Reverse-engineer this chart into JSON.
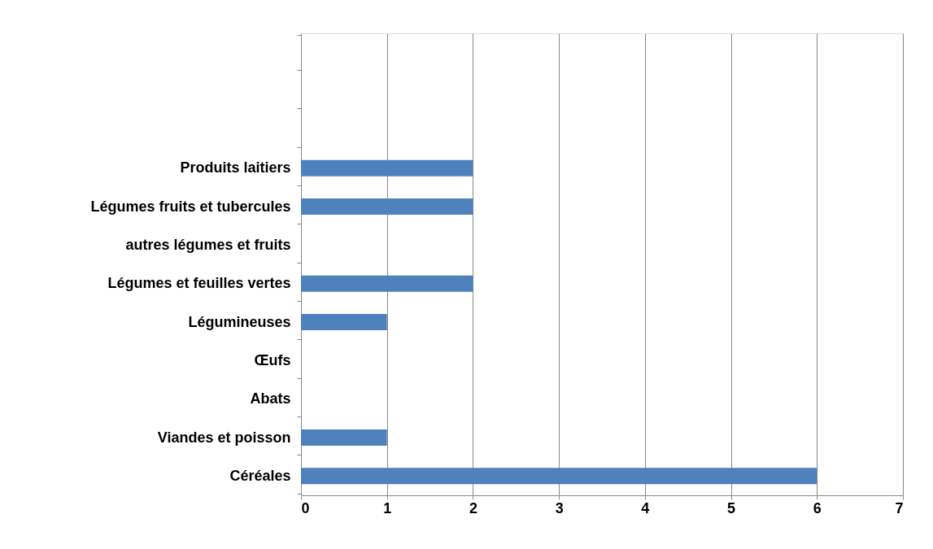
{
  "chart_data": {
    "type": "bar",
    "orientation": "horizontal",
    "categories": [
      null,
      null,
      null,
      "Produits laitiers",
      "Légumes fruits et tubercules",
      "autres légumes et fruits",
      "Légumes et feuilles vertes",
      "Légumineuses",
      "Œufs",
      "Abats",
      "Viandes et poisson",
      "Céréales"
    ],
    "values": [
      null,
      null,
      null,
      2,
      2,
      0,
      2,
      1,
      0,
      0,
      1,
      6
    ],
    "color": "#4f81bd",
    "xlim": [
      0,
      7
    ],
    "xticks": [
      0,
      1,
      2,
      3,
      4,
      5,
      6,
      7
    ],
    "grid": "x"
  }
}
